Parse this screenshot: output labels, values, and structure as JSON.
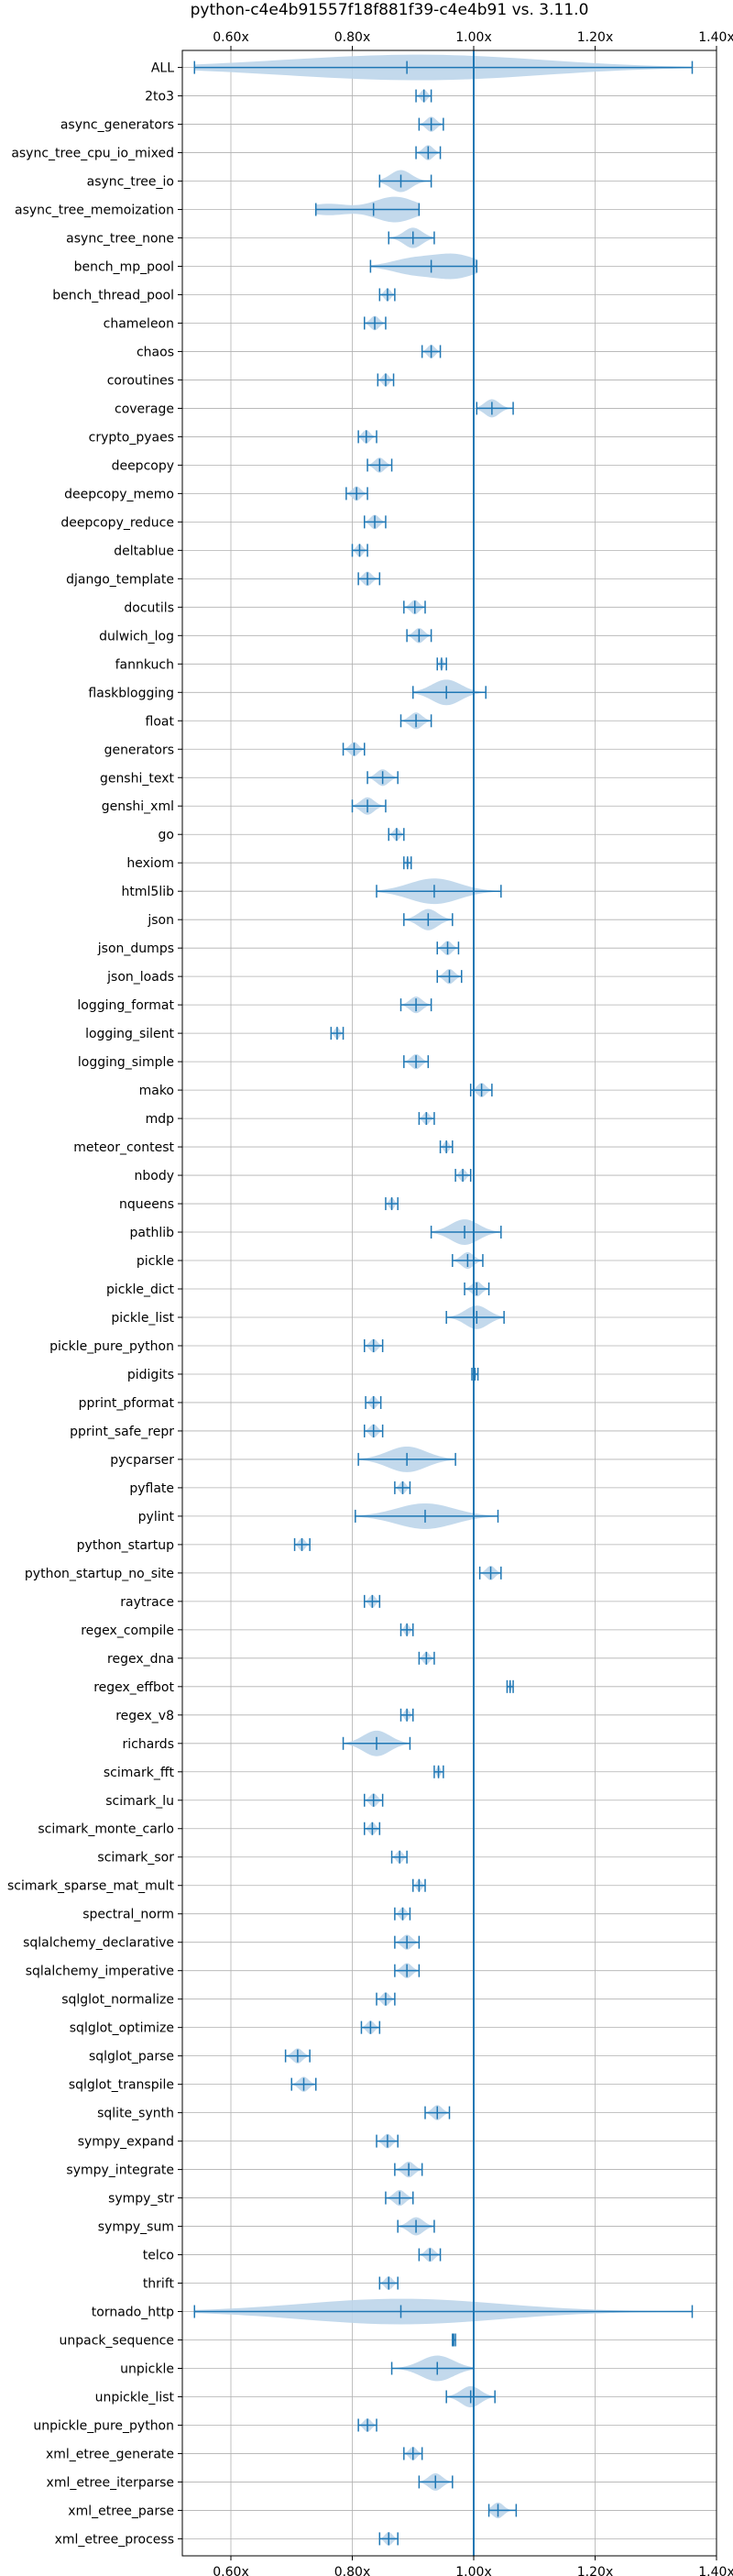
{
  "chart_data": {
    "type": "violin",
    "title": "python-c4e4b91557f18f881f39-c4e4b91 vs. 3.11.0",
    "xlim": [
      0.52,
      1.4
    ],
    "xticks": [
      0.6,
      0.8,
      1.0,
      1.2,
      1.4
    ],
    "xtick_labels": [
      "0.60x",
      "0.80x",
      "1.00x",
      "1.20x",
      "1.40x"
    ],
    "reference_line": 1.0,
    "grid": true,
    "color": "#1f77b4",
    "fill_color": "#bdd5ea",
    "categories": [
      "ALL",
      "2to3",
      "async_generators",
      "async_tree_cpu_io_mixed",
      "async_tree_io",
      "async_tree_memoization",
      "async_tree_none",
      "bench_mp_pool",
      "bench_thread_pool",
      "chameleon",
      "chaos",
      "coroutines",
      "coverage",
      "crypto_pyaes",
      "deepcopy",
      "deepcopy_memo",
      "deepcopy_reduce",
      "deltablue",
      "django_template",
      "docutils",
      "dulwich_log",
      "fannkuch",
      "flaskblogging",
      "float",
      "generators",
      "genshi_text",
      "genshi_xml",
      "go",
      "hexiom",
      "html5lib",
      "json",
      "json_dumps",
      "json_loads",
      "logging_format",
      "logging_silent",
      "logging_simple",
      "mako",
      "mdp",
      "meteor_contest",
      "nbody",
      "nqueens",
      "pathlib",
      "pickle",
      "pickle_dict",
      "pickle_list",
      "pickle_pure_python",
      "pidigits",
      "pprint_pformat",
      "pprint_safe_repr",
      "pycparser",
      "pyflate",
      "pylint",
      "python_startup",
      "python_startup_no_site",
      "raytrace",
      "regex_compile",
      "regex_dna",
      "regex_effbot",
      "regex_v8",
      "richards",
      "scimark_fft",
      "scimark_lu",
      "scimark_monte_carlo",
      "scimark_sor",
      "scimark_sparse_mat_mult",
      "spectral_norm",
      "sqlalchemy_declarative",
      "sqlalchemy_imperative",
      "sqlglot_normalize",
      "sqlglot_optimize",
      "sqlglot_parse",
      "sqlglot_transpile",
      "sqlite_synth",
      "sympy_expand",
      "sympy_integrate",
      "sympy_str",
      "sympy_sum",
      "telco",
      "thrift",
      "tornado_http",
      "unpack_sequence",
      "unpickle",
      "unpickle_list",
      "unpickle_pure_python",
      "xml_etree_generate",
      "xml_etree_iterparse",
      "xml_etree_parse",
      "xml_etree_process"
    ],
    "series": [
      {
        "min": 0.54,
        "max": 1.36,
        "median": 0.89,
        "modes": [
          [
            0.72,
            0.5
          ],
          [
            0.9,
            0.8
          ],
          [
            1.03,
            0.6
          ]
        ]
      },
      {
        "min": 0.905,
        "max": 0.93,
        "median": 0.918,
        "modes": [
          [
            0.918,
            0.7
          ]
        ]
      },
      {
        "min": 0.91,
        "max": 0.95,
        "median": 0.93,
        "modes": [
          [
            0.93,
            0.8
          ]
        ]
      },
      {
        "min": 0.905,
        "max": 0.945,
        "median": 0.925,
        "modes": [
          [
            0.925,
            0.8
          ]
        ]
      },
      {
        "min": 0.845,
        "max": 0.93,
        "median": 0.88,
        "modes": [
          [
            0.88,
            0.8
          ]
        ]
      },
      {
        "min": 0.74,
        "max": 0.91,
        "median": 0.835,
        "modes": [
          [
            0.76,
            0.4
          ],
          [
            0.87,
            0.9
          ]
        ]
      },
      {
        "min": 0.86,
        "max": 0.935,
        "median": 0.9,
        "modes": [
          [
            0.9,
            0.8
          ]
        ]
      },
      {
        "min": 0.83,
        "max": 1.005,
        "median": 0.93,
        "modes": [
          [
            0.9,
            0.6
          ],
          [
            0.97,
            0.9
          ]
        ]
      },
      {
        "min": 0.845,
        "max": 0.87,
        "median": 0.858,
        "modes": [
          [
            0.858,
            0.7
          ]
        ]
      },
      {
        "min": 0.82,
        "max": 0.855,
        "median": 0.837,
        "modes": [
          [
            0.837,
            0.8
          ]
        ]
      },
      {
        "min": 0.915,
        "max": 0.945,
        "median": 0.93,
        "modes": [
          [
            0.93,
            0.8
          ]
        ]
      },
      {
        "min": 0.842,
        "max": 0.868,
        "median": 0.855,
        "modes": [
          [
            0.855,
            0.7
          ]
        ]
      },
      {
        "min": 1.005,
        "max": 1.065,
        "median": 1.03,
        "modes": [
          [
            1.03,
            0.8
          ]
        ]
      },
      {
        "min": 0.81,
        "max": 0.84,
        "median": 0.823,
        "modes": [
          [
            0.823,
            0.7
          ]
        ]
      },
      {
        "min": 0.825,
        "max": 0.865,
        "median": 0.845,
        "modes": [
          [
            0.845,
            0.8
          ]
        ]
      },
      {
        "min": 0.79,
        "max": 0.825,
        "median": 0.807,
        "modes": [
          [
            0.807,
            0.8
          ]
        ]
      },
      {
        "min": 0.82,
        "max": 0.855,
        "median": 0.837,
        "modes": [
          [
            0.837,
            0.8
          ]
        ]
      },
      {
        "min": 0.8,
        "max": 0.825,
        "median": 0.812,
        "modes": [
          [
            0.812,
            0.7
          ]
        ]
      },
      {
        "min": 0.81,
        "max": 0.845,
        "median": 0.825,
        "modes": [
          [
            0.825,
            0.8
          ]
        ]
      },
      {
        "min": 0.885,
        "max": 0.92,
        "median": 0.903,
        "modes": [
          [
            0.903,
            0.8
          ]
        ]
      },
      {
        "min": 0.89,
        "max": 0.93,
        "median": 0.91,
        "modes": [
          [
            0.91,
            0.8
          ]
        ]
      },
      {
        "min": 0.94,
        "max": 0.955,
        "median": 0.947,
        "modes": [
          [
            0.947,
            0.6
          ]
        ]
      },
      {
        "min": 0.9,
        "max": 1.02,
        "median": 0.955,
        "modes": [
          [
            0.955,
            0.9
          ]
        ]
      },
      {
        "min": 0.88,
        "max": 0.93,
        "median": 0.905,
        "modes": [
          [
            0.905,
            0.8
          ]
        ]
      },
      {
        "min": 0.785,
        "max": 0.82,
        "median": 0.803,
        "modes": [
          [
            0.803,
            0.7
          ]
        ]
      },
      {
        "min": 0.825,
        "max": 0.875,
        "median": 0.85,
        "modes": [
          [
            0.85,
            0.9
          ]
        ]
      },
      {
        "min": 0.8,
        "max": 0.855,
        "median": 0.825,
        "modes": [
          [
            0.825,
            0.8
          ]
        ]
      },
      {
        "min": 0.86,
        "max": 0.885,
        "median": 0.873,
        "modes": [
          [
            0.873,
            0.7
          ]
        ]
      },
      {
        "min": 0.885,
        "max": 0.897,
        "median": 0.891,
        "modes": [
          [
            0.891,
            0.5
          ]
        ]
      },
      {
        "min": 0.84,
        "max": 1.045,
        "median": 0.935,
        "modes": [
          [
            0.935,
            0.9
          ]
        ]
      },
      {
        "min": 0.885,
        "max": 0.965,
        "median": 0.925,
        "modes": [
          [
            0.925,
            0.9
          ]
        ]
      },
      {
        "min": 0.94,
        "max": 0.975,
        "median": 0.957,
        "modes": [
          [
            0.957,
            0.8
          ]
        ]
      },
      {
        "min": 0.94,
        "max": 0.98,
        "median": 0.96,
        "modes": [
          [
            0.96,
            0.8
          ]
        ]
      },
      {
        "min": 0.88,
        "max": 0.93,
        "median": 0.905,
        "modes": [
          [
            0.905,
            0.8
          ]
        ]
      },
      {
        "min": 0.765,
        "max": 0.785,
        "median": 0.775,
        "modes": [
          [
            0.775,
            0.6
          ]
        ]
      },
      {
        "min": 0.885,
        "max": 0.925,
        "median": 0.905,
        "modes": [
          [
            0.905,
            0.8
          ]
        ]
      },
      {
        "min": 0.995,
        "max": 1.03,
        "median": 1.013,
        "modes": [
          [
            1.013,
            0.8
          ]
        ]
      },
      {
        "min": 0.91,
        "max": 0.935,
        "median": 0.922,
        "modes": [
          [
            0.922,
            0.7
          ]
        ]
      },
      {
        "min": 0.945,
        "max": 0.965,
        "median": 0.955,
        "modes": [
          [
            0.955,
            0.6
          ]
        ]
      },
      {
        "min": 0.97,
        "max": 0.995,
        "median": 0.982,
        "modes": [
          [
            0.982,
            0.7
          ]
        ]
      },
      {
        "min": 0.855,
        "max": 0.875,
        "median": 0.865,
        "modes": [
          [
            0.865,
            0.6
          ]
        ]
      },
      {
        "min": 0.93,
        "max": 1.045,
        "median": 0.985,
        "modes": [
          [
            0.985,
            0.9
          ]
        ]
      },
      {
        "min": 0.965,
        "max": 1.015,
        "median": 0.99,
        "modes": [
          [
            0.99,
            0.9
          ]
        ]
      },
      {
        "min": 0.985,
        "max": 1.025,
        "median": 1.005,
        "modes": [
          [
            1.005,
            0.8
          ]
        ]
      },
      {
        "min": 0.955,
        "max": 1.05,
        "median": 1.005,
        "modes": [
          [
            1.005,
            0.9
          ]
        ]
      },
      {
        "min": 0.82,
        "max": 0.85,
        "median": 0.835,
        "modes": [
          [
            0.835,
            0.8
          ]
        ]
      },
      {
        "min": 0.997,
        "max": 1.007,
        "median": 1.002,
        "modes": [
          [
            1.002,
            0.4
          ]
        ]
      },
      {
        "min": 0.822,
        "max": 0.847,
        "median": 0.835,
        "modes": [
          [
            0.835,
            0.7
          ]
        ]
      },
      {
        "min": 0.82,
        "max": 0.85,
        "median": 0.835,
        "modes": [
          [
            0.835,
            0.8
          ]
        ]
      },
      {
        "min": 0.81,
        "max": 0.97,
        "median": 0.89,
        "modes": [
          [
            0.89,
            0.9
          ]
        ]
      },
      {
        "min": 0.87,
        "max": 0.895,
        "median": 0.883,
        "modes": [
          [
            0.883,
            0.7
          ]
        ]
      },
      {
        "min": 0.805,
        "max": 1.04,
        "median": 0.92,
        "modes": [
          [
            0.92,
            0.8
          ]
        ]
      },
      {
        "min": 0.705,
        "max": 0.73,
        "median": 0.717,
        "modes": [
          [
            0.717,
            0.7
          ]
        ]
      },
      {
        "min": 1.01,
        "max": 1.045,
        "median": 1.028,
        "modes": [
          [
            1.028,
            0.8
          ]
        ]
      },
      {
        "min": 0.82,
        "max": 0.845,
        "median": 0.833,
        "modes": [
          [
            0.833,
            0.7
          ]
        ]
      },
      {
        "min": 0.88,
        "max": 0.9,
        "median": 0.89,
        "modes": [
          [
            0.89,
            0.6
          ]
        ]
      },
      {
        "min": 0.91,
        "max": 0.935,
        "median": 0.922,
        "modes": [
          [
            0.922,
            0.7
          ]
        ]
      },
      {
        "min": 1.055,
        "max": 1.065,
        "median": 1.06,
        "modes": [
          [
            1.06,
            0.4
          ]
        ]
      },
      {
        "min": 0.88,
        "max": 0.9,
        "median": 0.89,
        "modes": [
          [
            0.89,
            0.6
          ]
        ]
      },
      {
        "min": 0.785,
        "max": 0.895,
        "median": 0.84,
        "modes": [
          [
            0.84,
            0.9
          ]
        ]
      },
      {
        "min": 0.935,
        "max": 0.95,
        "median": 0.942,
        "modes": [
          [
            0.942,
            0.6
          ]
        ]
      },
      {
        "min": 0.82,
        "max": 0.85,
        "median": 0.835,
        "modes": [
          [
            0.835,
            0.8
          ]
        ]
      },
      {
        "min": 0.82,
        "max": 0.845,
        "median": 0.833,
        "modes": [
          [
            0.833,
            0.7
          ]
        ]
      },
      {
        "min": 0.865,
        "max": 0.89,
        "median": 0.878,
        "modes": [
          [
            0.878,
            0.7
          ]
        ]
      },
      {
        "min": 0.9,
        "max": 0.92,
        "median": 0.91,
        "modes": [
          [
            0.91,
            0.6
          ]
        ]
      },
      {
        "min": 0.87,
        "max": 0.895,
        "median": 0.883,
        "modes": [
          [
            0.883,
            0.7
          ]
        ]
      },
      {
        "min": 0.87,
        "max": 0.91,
        "median": 0.89,
        "modes": [
          [
            0.89,
            0.8
          ]
        ]
      },
      {
        "min": 0.87,
        "max": 0.91,
        "median": 0.89,
        "modes": [
          [
            0.89,
            0.8
          ]
        ]
      },
      {
        "min": 0.84,
        "max": 0.87,
        "median": 0.855,
        "modes": [
          [
            0.855,
            0.7
          ]
        ]
      },
      {
        "min": 0.815,
        "max": 0.845,
        "median": 0.83,
        "modes": [
          [
            0.83,
            0.7
          ]
        ]
      },
      {
        "min": 0.69,
        "max": 0.73,
        "median": 0.71,
        "modes": [
          [
            0.71,
            0.8
          ]
        ]
      },
      {
        "min": 0.7,
        "max": 0.74,
        "median": 0.72,
        "modes": [
          [
            0.72,
            0.8
          ]
        ]
      },
      {
        "min": 0.92,
        "max": 0.96,
        "median": 0.94,
        "modes": [
          [
            0.94,
            0.8
          ]
        ]
      },
      {
        "min": 0.84,
        "max": 0.875,
        "median": 0.858,
        "modes": [
          [
            0.858,
            0.8
          ]
        ]
      },
      {
        "min": 0.87,
        "max": 0.915,
        "median": 0.893,
        "modes": [
          [
            0.893,
            0.8
          ]
        ]
      },
      {
        "min": 0.855,
        "max": 0.9,
        "median": 0.878,
        "modes": [
          [
            0.878,
            0.9
          ]
        ]
      },
      {
        "min": 0.875,
        "max": 0.935,
        "median": 0.905,
        "modes": [
          [
            0.905,
            0.9
          ]
        ]
      },
      {
        "min": 0.91,
        "max": 0.945,
        "median": 0.928,
        "modes": [
          [
            0.928,
            0.8
          ]
        ]
      },
      {
        "min": 0.845,
        "max": 0.875,
        "median": 0.86,
        "modes": [
          [
            0.86,
            0.7
          ]
        ]
      },
      {
        "min": 0.54,
        "max": 1.36,
        "median": 0.88,
        "modes": [
          [
            0.88,
            1.0
          ]
        ]
      },
      {
        "min": 0.965,
        "max": 0.97,
        "median": 0.967,
        "modes": [
          [
            0.967,
            0.3
          ]
        ]
      },
      {
        "min": 0.865,
        "max": 1.0,
        "median": 0.94,
        "modes": [
          [
            0.94,
            0.9
          ]
        ]
      },
      {
        "min": 0.955,
        "max": 1.035,
        "median": 0.995,
        "modes": [
          [
            0.995,
            0.9
          ]
        ]
      },
      {
        "min": 0.81,
        "max": 0.84,
        "median": 0.825,
        "modes": [
          [
            0.825,
            0.8
          ]
        ]
      },
      {
        "min": 0.885,
        "max": 0.915,
        "median": 0.9,
        "modes": [
          [
            0.9,
            0.7
          ]
        ]
      },
      {
        "min": 0.91,
        "max": 0.965,
        "median": 0.937,
        "modes": [
          [
            0.937,
            0.8
          ]
        ]
      },
      {
        "min": 1.025,
        "max": 1.07,
        "median": 1.04,
        "modes": [
          [
            1.04,
            0.7
          ]
        ]
      },
      {
        "min": 0.845,
        "max": 0.875,
        "median": 0.86,
        "modes": [
          [
            0.86,
            0.8
          ]
        ]
      }
    ]
  }
}
